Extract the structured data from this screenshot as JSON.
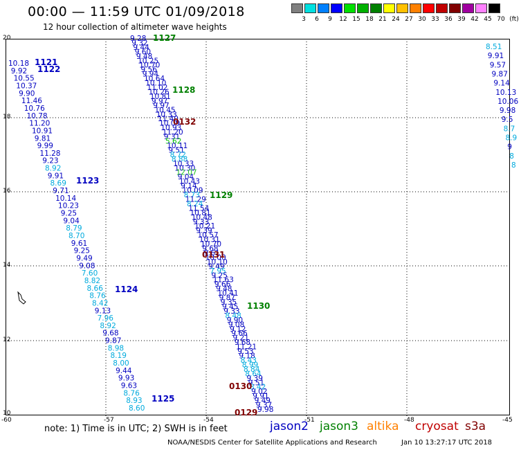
{
  "header": {
    "title": "00:00 — 11:59 UTC 01/09/2018",
    "subtitle": "12 hour collection of altimeter wave heights"
  },
  "legend": {
    "labels": [
      "3",
      "6",
      "9",
      "12",
      "15",
      "18",
      "21",
      "24",
      "27",
      "30",
      "33",
      "36",
      "39",
      "42",
      "45",
      "70",
      "(ft)"
    ],
    "colors": [
      "#808080",
      "#00e0e0",
      "#0080ff",
      "#0000ff",
      "#00e000",
      "#00b000",
      "#008000",
      "#ffff00",
      "#ffc000",
      "#ff8000",
      "#ff0000",
      "#c00000",
      "#800000",
      "#a000a0",
      "#ff80ff",
      "#000000"
    ]
  },
  "axes": {
    "lat_labels": [
      "20",
      "18",
      "16",
      "14",
      "12",
      "10"
    ],
    "lon_labels": [
      "-60",
      "-57",
      "-54",
      "-51",
      "-48",
      "-45"
    ]
  },
  "passes": [
    {
      "id": "1121",
      "color": "#0000c0"
    },
    {
      "id": "1122",
      "color": "#0000c0"
    },
    {
      "id": "1123",
      "color": "#0000c0"
    },
    {
      "id": "1124",
      "color": "#0000c0"
    },
    {
      "id": "1125",
      "color": "#0000c0"
    },
    {
      "id": "1127",
      "color": "#008000"
    },
    {
      "id": "1128",
      "color": "#008000"
    },
    {
      "id": "1129",
      "color": "#008000"
    },
    {
      "id": "1130",
      "color": "#008000"
    },
    {
      "id": "0132",
      "color": "#800000"
    },
    {
      "id": "0131",
      "color": "#800000"
    },
    {
      "id": "0130",
      "color": "#800000"
    },
    {
      "id": "0129",
      "color": "#800000"
    }
  ],
  "track_a": [
    "10.18",
    "9.92",
    "10.55",
    "10.37",
    "9.90",
    "11.46",
    "10.76",
    "10.78",
    "11.20",
    "10.91",
    "9.81",
    "9.99",
    "11.28",
    "9.23",
    "8.92",
    "9.91",
    "8.69",
    "9.71",
    "10.14",
    "10.23",
    "9.25",
    "9.04",
    "8.79",
    "8.70",
    "9.61",
    "9.25",
    "9.49",
    "9.08",
    "7.60",
    "8.82",
    "8.66",
    "8.76",
    "8.42",
    "9.13",
    "7.96",
    "8.92",
    "9.68",
    "9.87",
    "8.98",
    "8.19",
    "8.00",
    "9.44",
    "9.93",
    "9.63",
    "8.76",
    "8.93",
    "8.60"
  ],
  "track_b": [
    "9.28",
    "9.32",
    "9.44",
    "9.60",
    "9.48",
    "10.25",
    "10.70",
    "9.56",
    "9.94",
    "10.64",
    "10.10",
    "11.02",
    "10.26",
    "10.81",
    "9.97",
    "9.97",
    "10.45",
    "10.33",
    "11.40",
    "10.09",
    "10.93",
    "11.20",
    "9.31",
    "5.62",
    "10.11",
    "9.51",
    "8.72",
    "8.88",
    "10.33",
    "10.30",
    "12.07",
    "9.04",
    "10.43",
    "9.14",
    "10.09",
    "8.73",
    "11.29",
    "8.24",
    "11.54",
    "10.81",
    "10.48",
    "9.33",
    "10.21",
    "9.39",
    "10.57",
    "10.31",
    "10.70",
    "9.68",
    "9.61",
    "10.00",
    "10.10",
    "9.49",
    "7.95",
    "9.25",
    "11.63",
    "9.66",
    "9.48",
    "10.41",
    "9.87",
    "9.35",
    "9.45",
    "9.33",
    "8.48",
    "9.90",
    "9.08",
    "9.12",
    "9.66",
    "9.21",
    "9.68",
    "11.21",
    "9.53",
    "9.18",
    "8.43",
    "8.99",
    "8.84",
    "8.64",
    "9.39",
    "9.51",
    "8.42",
    "9.02",
    "9.91",
    "9.49",
    "9.37",
    "9.98"
  ],
  "track_c": [
    "8.51",
    "9.91",
    "9.57",
    "9.87",
    "9.14",
    "10.13",
    "10.06",
    "9.98",
    "9.5",
    "8.7",
    "8.9",
    "9",
    "8",
    "8"
  ],
  "footer": {
    "note": "note:  1) Time is in UTC;  2) SWH is in feet",
    "sats": [
      {
        "name": "jason2",
        "color": "#0000c0"
      },
      {
        "name": "jason3",
        "color": "#008000"
      },
      {
        "name": "altika",
        "color": "#ff8000"
      },
      {
        "name": "cryosat",
        "color": "#c00000"
      },
      {
        "name": "s3a",
        "color": "#800000"
      }
    ],
    "credit": "NOAA/NESDIS Center for Satellite Applications and Research",
    "timestamp": "Jan 10 13:27:17 UTC 2018"
  }
}
